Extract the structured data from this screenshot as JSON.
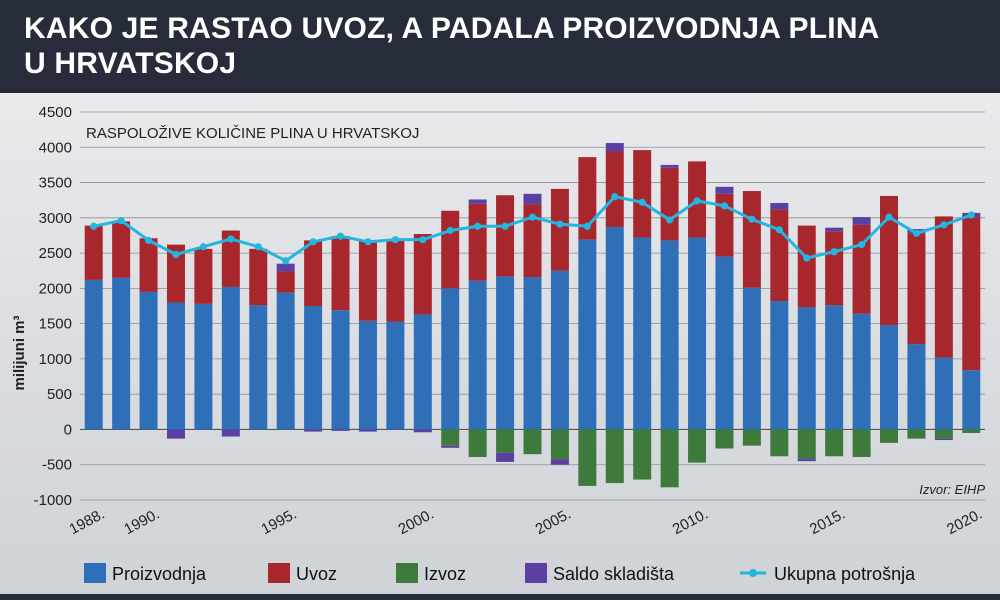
{
  "title": {
    "line1": "KAKO JE RASTAO UVOZ, A PADALA PROIZVODNJA PLINA",
    "line2": "U HRVATSKOJ"
  },
  "chart_data": {
    "type": "bar",
    "subtitle": "RASPOLOŽIVE KOLIČINE PLINA U HRVATSKOJ",
    "ylabel": "milijuni m³",
    "source": "Izvor: EIHP",
    "ylim": [
      -1000,
      4500
    ],
    "yticks": [
      4500,
      4000,
      3500,
      3000,
      2500,
      2000,
      1500,
      1000,
      500,
      0,
      -500,
      -1000
    ],
    "grid": true,
    "legend_position": "bottom",
    "x": [
      1988,
      1989,
      1990,
      1991,
      1992,
      1993,
      1994,
      1995,
      1996,
      1997,
      1998,
      1999,
      2000,
      2001,
      2002,
      2003,
      2004,
      2005,
      2006,
      2007,
      2008,
      2009,
      2010,
      2011,
      2012,
      2013,
      2014,
      2015,
      2016,
      2017,
      2018,
      2019,
      2020
    ],
    "x_tick_labels": [
      "1988.",
      "1990.",
      "1995.",
      "2000.",
      "2005.",
      "2010.",
      "2015.",
      "2020."
    ],
    "x_tick_years": [
      1988,
      1990,
      1995,
      2000,
      2005,
      2010,
      2015,
      2020
    ],
    "series": [
      {
        "name": "Proizvodnja",
        "kind": "bar",
        "color": "#2f6fb8",
        "values": [
          2120,
          2150,
          1950,
          1800,
          1780,
          2020,
          1760,
          1940,
          1750,
          1690,
          1540,
          1530,
          1630,
          2000,
          2110,
          2170,
          2160,
          2250,
          2690,
          2870,
          2720,
          2680,
          2720,
          2450,
          2010,
          1820,
          1730,
          1760,
          1640,
          1480,
          1210,
          1020,
          840
        ]
      },
      {
        "name": "Uvoz",
        "kind": "bar",
        "color": "#a8272c",
        "values": [
          770,
          800,
          760,
          820,
          780,
          800,
          800,
          300,
          930,
          1050,
          1140,
          1170,
          1140,
          1100,
          1090,
          1150,
          1030,
          1160,
          1170,
          1070,
          1240,
          1030,
          1080,
          890,
          1370,
          1300,
          1160,
          1050,
          1260,
          1830,
          1570,
          2000,
          2170
        ]
      },
      {
        "name": "Izvoz",
        "kind": "bar",
        "color": "#3d7a3b",
        "values": [
          0,
          0,
          0,
          0,
          0,
          0,
          0,
          0,
          0,
          0,
          0,
          0,
          0,
          -230,
          -390,
          -330,
          -350,
          -420,
          -800,
          -760,
          -710,
          -820,
          -470,
          -270,
          -230,
          -380,
          -420,
          -380,
          -390,
          -190,
          -130,
          -130,
          -50
        ]
      },
      {
        "name": "Saldo skladišta",
        "kind": "bar",
        "color": "#5b3fa3",
        "values": [
          0,
          0,
          0,
          -130,
          0,
          -100,
          0,
          110,
          -30,
          -20,
          -30,
          0,
          -40,
          -30,
          60,
          -130,
          150,
          -80,
          0,
          120,
          0,
          40,
          0,
          100,
          0,
          90,
          -30,
          50,
          110,
          0,
          60,
          -20,
          60
        ]
      },
      {
        "name": "Ukupna potrošnja",
        "kind": "line",
        "color": "#22b6e0",
        "values": [
          2880,
          2960,
          2680,
          2480,
          2590,
          2700,
          2590,
          2390,
          2660,
          2740,
          2660,
          2690,
          2690,
          2820,
          2880,
          2880,
          3010,
          2910,
          2880,
          3300,
          3220,
          2970,
          3240,
          3170,
          2980,
          2830,
          2430,
          2520,
          2620,
          3010,
          2780,
          2900,
          3040
        ]
      }
    ]
  }
}
